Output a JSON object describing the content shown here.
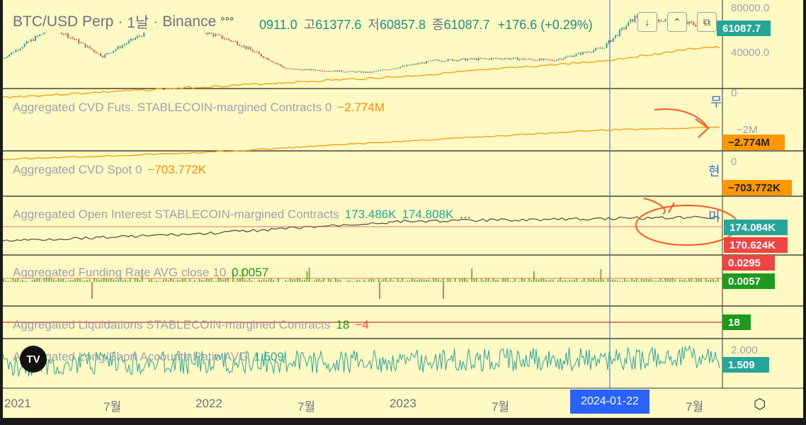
{
  "chart": {
    "symbol": "BTC/USD Perp",
    "interval": "1날",
    "exchange": "Binance",
    "ohlc": {
      "open": "0911.0",
      "high_label": "고",
      "high": "61377.6",
      "low_label": "저",
      "low": "60857.8",
      "close_label": "종",
      "close": "61087.7",
      "change": "+176.6 (+0.29%)"
    },
    "axis_ticks": [
      "80000.0",
      "40000.0",
      "0",
      "−2M",
      "0",
      "2.000"
    ],
    "tags": {
      "price": "61087.7",
      "cvd_futs": "−2.774M",
      "cvd_spot": "−703.772K",
      "oi_1": "174.084K",
      "oi_2": "170.624K",
      "funding_1": "0.0295",
      "funding_2": "0.0057",
      "liq_1": "18",
      "ratio": "1.509"
    },
    "margin_chars": [
      "무",
      "현",
      "미"
    ],
    "crosshair_date": "2024-01-22",
    "panes": [
      {
        "label": "Aggregated CVD Futs. STABLECOIN-margined Contracts 0",
        "value": "−2.774M"
      },
      {
        "label": "Aggregated CVD Spot 0",
        "value": "−703.772K"
      },
      {
        "label": "Aggregated Open Interest STABLECOIN-margined Contracts",
        "value": "173.486K",
        "value2": "174.808K"
      },
      {
        "label": "Aggregated Funding Rate AVG close 10",
        "value": "0.0057"
      },
      {
        "label": "Aggregated Liquidations STABLECOIN-margined Contracts",
        "value": "18",
        "value2": "−4"
      },
      {
        "label": "Aggregated Long/Short Accounts Ratio AVG",
        "value": "1.509"
      }
    ],
    "colors": {
      "background": "#fff9c4",
      "up": "#26a69a",
      "down": "#ef5350",
      "cvd": "#ff9800",
      "crosshair": "#2962ff",
      "annotation": "#ff5722"
    }
  },
  "chart_data": {
    "type": "line",
    "x_ticks": [
      "2021",
      "7월",
      "2022",
      "7월",
      "2023",
      "7월",
      "7월"
    ],
    "price_series": {
      "name": "BTC/USD Perp",
      "x": [
        "2021-01",
        "2021-04",
        "2021-07",
        "2021-11",
        "2022-03",
        "2022-06",
        "2022-11",
        "2023-03",
        "2023-07",
        "2023-10",
        "2024-01",
        "2024-03",
        "2024-07"
      ],
      "values": [
        30000,
        60000,
        32000,
        67000,
        45000,
        20000,
        16500,
        28000,
        30000,
        28000,
        40000,
        70000,
        61087.7
      ]
    },
    "cvd_futs": {
      "x": [
        "2021-01",
        "2022-01",
        "2023-01",
        "2024-01",
        "2024-07"
      ],
      "values": [
        0.1,
        -0.5,
        -1.1,
        -2.0,
        -2.774
      ]
    },
    "cvd_spot": {
      "x": [
        "2021-01",
        "2022-01",
        "2023-01",
        "2024-01",
        "2024-07"
      ],
      "values": [
        0,
        -150,
        -400,
        -650,
        -703.772
      ]
    },
    "open_interest": {
      "x": [
        "2021-01",
        "2022-01",
        "2023-01",
        "2024-01",
        "2024-07"
      ],
      "values": [
        40,
        80,
        150,
        165,
        174.084
      ]
    },
    "funding_rate": {
      "last": 0.0057
    },
    "long_short_ratio": {
      "last": 1.509
    }
  }
}
